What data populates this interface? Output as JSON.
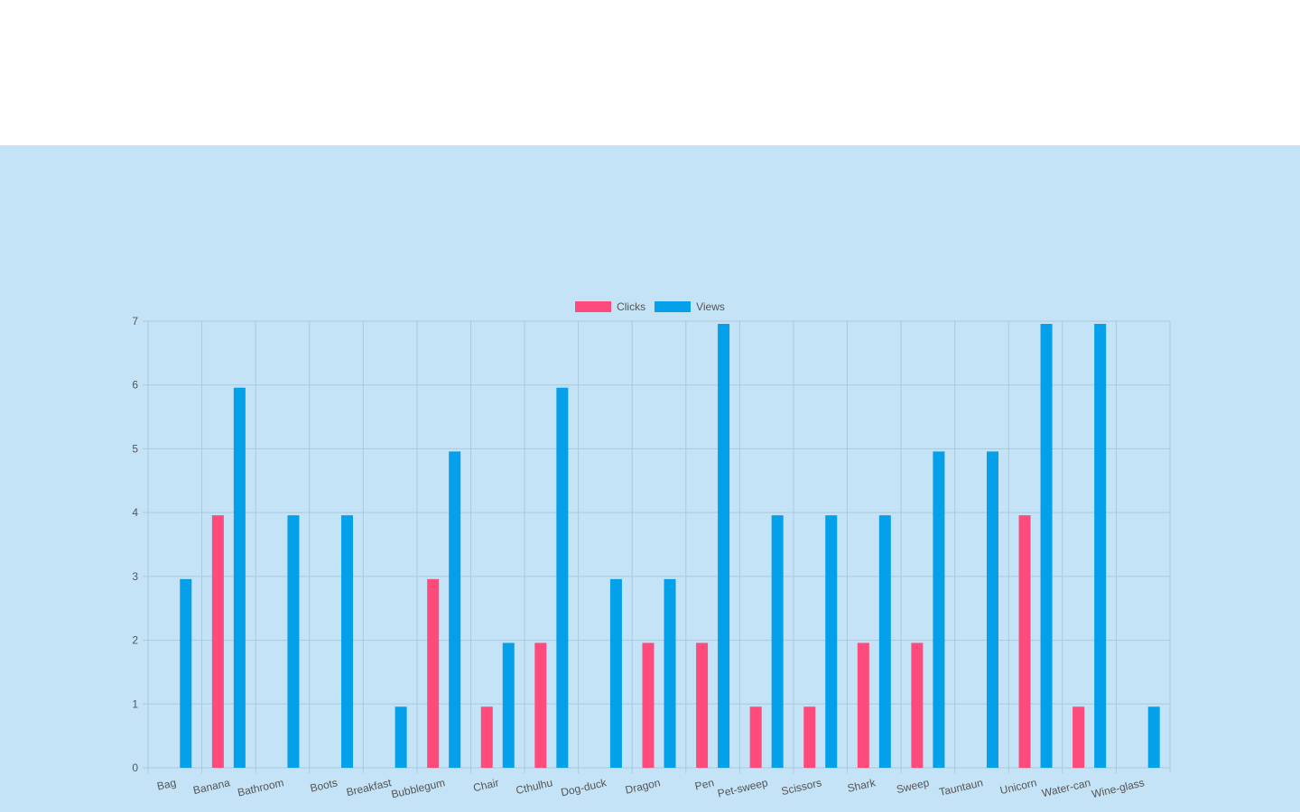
{
  "colors": {
    "clicks": "#ff4a7c",
    "views": "#05a0ea",
    "background": "#c5e3f6",
    "grid": "#a9c9df",
    "axis_text": "#555555"
  },
  "chart_data": {
    "type": "bar",
    "categories": [
      "Bag",
      "Banana",
      "Bathroom",
      "Boots",
      "Breakfast",
      "Bubblegum",
      "Chair",
      "Cthulhu",
      "Dog-duck",
      "Dragon",
      "Pen",
      "Pet-sweep",
      "Scissors",
      "Shark",
      "Sweep",
      "Tauntaun",
      "Unicorn",
      "Water-can",
      "Wine-glass"
    ],
    "series": [
      {
        "name": "Clicks",
        "color": "#ff4a7c",
        "values": [
          0,
          4,
          0,
          0,
          0,
          3,
          1,
          2,
          0,
          2,
          2,
          1,
          1,
          2,
          2,
          0,
          4,
          1,
          0
        ]
      },
      {
        "name": "Views",
        "color": "#05a0ea",
        "values": [
          3,
          6,
          4,
          4,
          1,
          5,
          2,
          6,
          3,
          3,
          7,
          4,
          4,
          4,
          5,
          5,
          7,
          7,
          1
        ]
      }
    ],
    "ylim": [
      0,
      7
    ],
    "yticks": [
      "0",
      "1",
      "2",
      "3",
      "4",
      "5",
      "6",
      "7"
    ],
    "grid": true,
    "legend_position": "top"
  }
}
